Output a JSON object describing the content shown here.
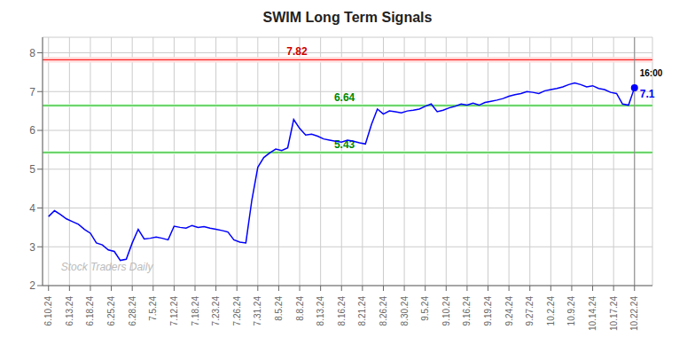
{
  "chart_data": {
    "type": "line",
    "title": "SWIM Long Term Signals",
    "color": "blue",
    "grid": true,
    "x": [
      0,
      1,
      2,
      3,
      4,
      5,
      6,
      7,
      8,
      9,
      10,
      11,
      12,
      13,
      14,
      15,
      16,
      17,
      18,
      19,
      20,
      21,
      22,
      23,
      24,
      25,
      26,
      27,
      28,
      29,
      30,
      31,
      32,
      33,
      34,
      35,
      36,
      37,
      38,
      39,
      40,
      41,
      42,
      43,
      44,
      45,
      46,
      47,
      48,
      49,
      50,
      51,
      52,
      53,
      54,
      55,
      56,
      57,
      58,
      59,
      60,
      61,
      62,
      63,
      64,
      65,
      66,
      67,
      68,
      69,
      70,
      71,
      72,
      73,
      74,
      75,
      76,
      77,
      78,
      79,
      80,
      81,
      82,
      83,
      84,
      85,
      86,
      87,
      88,
      89,
      90,
      91,
      92,
      93,
      94,
      95,
      96,
      97,
      98
    ],
    "values": [
      3.78,
      3.93,
      3.83,
      3.72,
      3.65,
      3.58,
      3.45,
      3.35,
      3.1,
      3.05,
      2.92,
      2.88,
      2.65,
      2.68,
      3.1,
      3.45,
      3.2,
      3.22,
      3.25,
      3.22,
      3.18,
      3.53,
      3.5,
      3.48,
      3.55,
      3.5,
      3.52,
      3.48,
      3.45,
      3.42,
      3.38,
      3.18,
      3.12,
      3.1,
      4.2,
      5.05,
      5.3,
      5.42,
      5.52,
      5.48,
      5.55,
      6.28,
      6.05,
      5.88,
      5.9,
      5.85,
      5.78,
      5.75,
      5.72,
      5.7,
      5.75,
      5.72,
      5.68,
      5.65,
      6.15,
      6.55,
      6.42,
      6.5,
      6.48,
      6.45,
      6.5,
      6.52,
      6.55,
      6.62,
      6.68,
      6.48,
      6.52,
      6.58,
      6.62,
      6.68,
      6.65,
      6.7,
      6.65,
      6.72,
      6.75,
      6.78,
      6.82,
      6.88,
      6.92,
      6.95,
      7.0,
      6.98,
      6.95,
      7.02,
      7.05,
      7.08,
      7.12,
      7.18,
      7.22,
      7.18,
      7.12,
      7.15,
      7.08,
      7.05,
      6.98,
      6.95,
      6.68,
      6.65,
      7.1
    ],
    "xlim": [
      -1,
      101
    ],
    "xticks": [
      {
        "value": 0,
        "label": "6.10.24"
      },
      {
        "value": 3.5,
        "label": "6.13.24"
      },
      {
        "value": 7,
        "label": "6.18.24"
      },
      {
        "value": 10.5,
        "label": "6.25.24"
      },
      {
        "value": 14,
        "label": "6.28.24"
      },
      {
        "value": 17.5,
        "label": "7.5.24"
      },
      {
        "value": 21,
        "label": "7.12.24"
      },
      {
        "value": 24.5,
        "label": "7.18.24"
      },
      {
        "value": 28,
        "label": "7.23.24"
      },
      {
        "value": 31.5,
        "label": "7.26.24"
      },
      {
        "value": 35,
        "label": "7.31.24"
      },
      {
        "value": 38.5,
        "label": "8.5.24"
      },
      {
        "value": 42,
        "label": "8.8.24"
      },
      {
        "value": 45.5,
        "label": "8.13.24"
      },
      {
        "value": 49,
        "label": "8.16.24"
      },
      {
        "value": 52.5,
        "label": "8.21.24"
      },
      {
        "value": 56,
        "label": "8.26.24"
      },
      {
        "value": 59.5,
        "label": "8.30.24"
      },
      {
        "value": 63,
        "label": "9.5.24"
      },
      {
        "value": 66.5,
        "label": "9.10.24"
      },
      {
        "value": 70,
        "label": "9.16.24"
      },
      {
        "value": 73.5,
        "label": "9.19.24"
      },
      {
        "value": 77,
        "label": "9.24.24"
      },
      {
        "value": 80.5,
        "label": "9.27.24"
      },
      {
        "value": 84,
        "label": "10.2.24"
      },
      {
        "value": 87.5,
        "label": "10.9.24"
      },
      {
        "value": 91,
        "label": "10.14.24"
      },
      {
        "value": 94.5,
        "label": "10.17.24"
      },
      {
        "value": 98,
        "label": "10.22.24"
      }
    ],
    "ylim": [
      2,
      8.4
    ],
    "yticks": [
      2,
      3,
      4,
      5,
      6,
      7,
      8
    ],
    "reference_lines": [
      {
        "value": 7.82,
        "color": "#ff0000",
        "half_width": 0.07,
        "band_color": "#ffdddd",
        "label": "7.82",
        "label_color": "#cc0000"
      },
      {
        "value": 6.64,
        "color": "#00aa00",
        "half_width": 0.04,
        "band_color": "#ddffdd",
        "label": "6.64",
        "label_color": "#008800"
      },
      {
        "value": 5.43,
        "color": "#00aa00",
        "half_width": 0.04,
        "band_color": "#ddffdd",
        "label": "5.43",
        "label_color": "#008800"
      }
    ],
    "last_point": {
      "label": "16:00",
      "value": 7.1,
      "color": "blue"
    },
    "watermark": {
      "text": "Stock Traders Daily",
      "color": "#bbbbbb"
    }
  }
}
